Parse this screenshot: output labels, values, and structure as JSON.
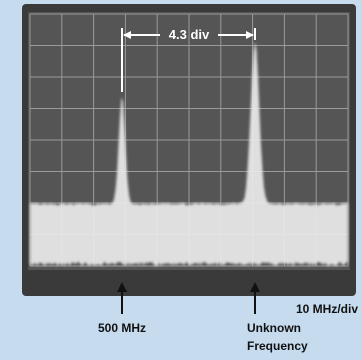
{
  "annotations": {
    "span": "4.3 div",
    "left_marker": "500 MHz",
    "right_marker": [
      "Unknown",
      "Frequency"
    ],
    "scale": "10 MHz/div"
  }
}
